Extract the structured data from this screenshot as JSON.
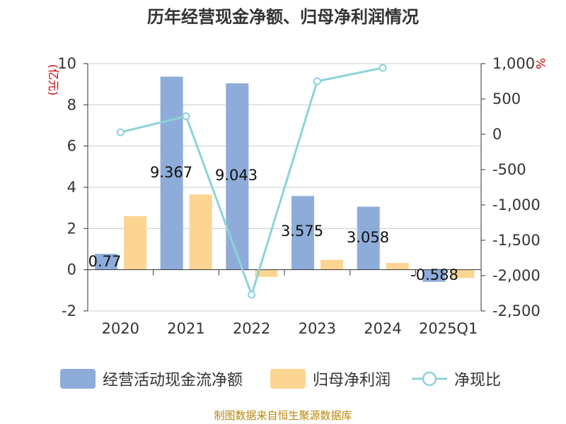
{
  "title": "历年经营现金净额、归母净利润情况",
  "source_note": "制图数据来自恒生聚源数据库",
  "colors": {
    "cash_flow": "#8eacd9",
    "net_profit": "#fdd592",
    "ratio": "#8dd3d8",
    "axis": "#333333",
    "grid": "#cccccc",
    "unit_label": "#cc0000"
  },
  "chart_data": {
    "type": "bar",
    "title": "历年经营现金净额、归母净利润情况",
    "categories": [
      "2020",
      "2021",
      "2022",
      "2023",
      "2024",
      "2025Q1"
    ],
    "series": [
      {
        "name": "经营活动现金流净额",
        "type": "bar",
        "axis": "left",
        "values": [
          0.77,
          9.367,
          9.043,
          3.575,
          3.058,
          -0.588
        ],
        "labels": [
          "0.77",
          "9.367",
          "9.043",
          "3.575",
          "3.058",
          "-0.588"
        ]
      },
      {
        "name": "归母净利润",
        "type": "bar",
        "axis": "left",
        "values": [
          2.6,
          3.65,
          -0.35,
          0.48,
          0.33,
          -0.4
        ]
      },
      {
        "name": "净现比",
        "type": "line",
        "axis": "right",
        "values": [
          28,
          255,
          -2270,
          750,
          940,
          null
        ]
      }
    ],
    "left_axis": {
      "unit": "(亿元)",
      "min": -2,
      "max": 10,
      "ticks": [
        "-2",
        "0",
        "2",
        "4",
        "6",
        "8",
        "10"
      ]
    },
    "right_axis": {
      "unit": "%",
      "min": -2500,
      "max": 1000,
      "ticks": [
        "-2,500",
        "-2,000",
        "-1,500",
        "-1,000",
        "-500",
        "0",
        "500",
        "1,000"
      ]
    },
    "grid": true,
    "legend_position": "bottom"
  }
}
